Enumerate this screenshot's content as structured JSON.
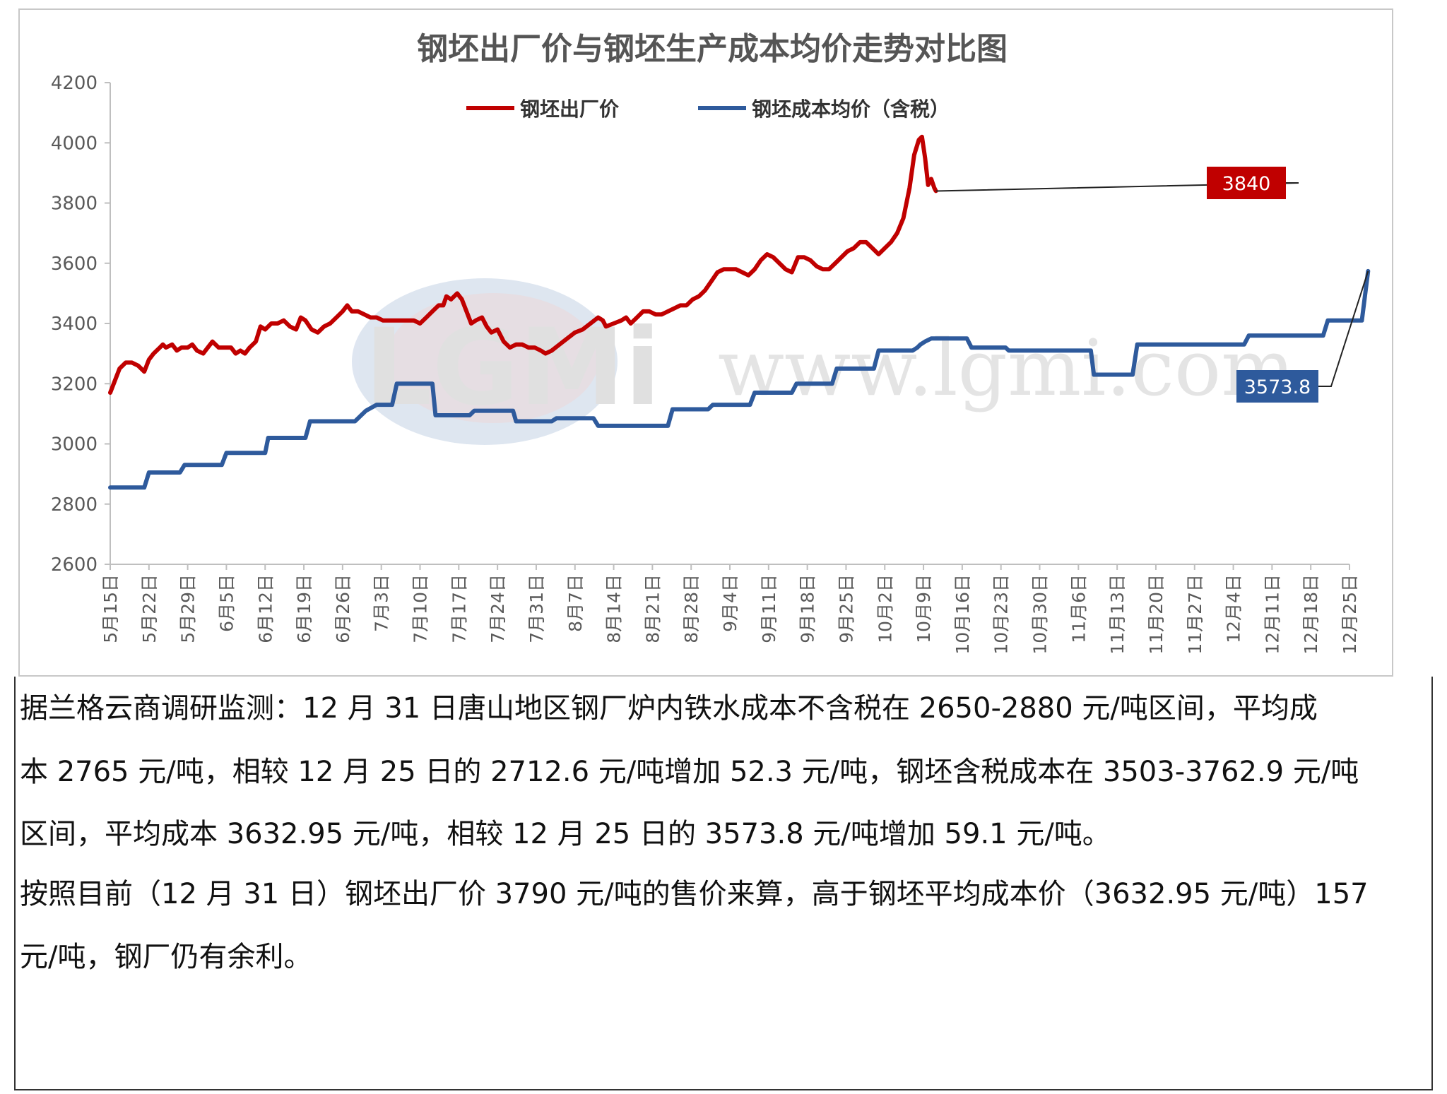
{
  "chart_data": {
    "type": "line",
    "title": "钢坯出厂价与钢坯生产成本均价走势对比图",
    "watermark": "LGMi www.lgmi.com",
    "ylim": [
      2600,
      4200
    ],
    "yticks": [
      "4200",
      "4000",
      "3800",
      "3600",
      "3400",
      "3200",
      "3000",
      "2800",
      "2600"
    ],
    "x_tick_labels": [
      "5月15日",
      "5月22日",
      "5月29日",
      "6月5日",
      "6月12日",
      "6月19日",
      "6月26日",
      "7月3日",
      "7月10日",
      "7月17日",
      "7月24日",
      "7月31日",
      "8月7日",
      "8月14日",
      "8月21日",
      "8月28日",
      "9月4日",
      "9月11日",
      "9月18日",
      "9月25日",
      "10月2日",
      "10月9日",
      "10月16日",
      "10月23日",
      "10月30日",
      "11月6日",
      "11月13日",
      "11月20日",
      "11月27日",
      "12月4日",
      "12月11日",
      "12月18日",
      "12月25日"
    ],
    "legend_position": "top",
    "grid": false,
    "series": [
      {
        "name": "钢坯出厂价",
        "color": "#c00000",
        "points": [
          [
            0,
            3170
          ],
          [
            0.3,
            3210
          ],
          [
            0.6,
            3250
          ],
          [
            1,
            3270
          ],
          [
            1.4,
            3270
          ],
          [
            1.8,
            3260
          ],
          [
            2.2,
            3240
          ],
          [
            2.5,
            3280
          ],
          [
            2.8,
            3300
          ],
          [
            3.2,
            3320
          ],
          [
            3.4,
            3330
          ],
          [
            3.6,
            3320
          ],
          [
            4,
            3330
          ],
          [
            4.3,
            3310
          ],
          [
            4.6,
            3320
          ],
          [
            5,
            3320
          ],
          [
            5.3,
            3330
          ],
          [
            5.6,
            3310
          ],
          [
            6,
            3300
          ],
          [
            6.3,
            3320
          ],
          [
            6.6,
            3340
          ],
          [
            7,
            3320
          ],
          [
            7.4,
            3320
          ],
          [
            7.8,
            3320
          ],
          [
            8.1,
            3300
          ],
          [
            8.4,
            3310
          ],
          [
            8.7,
            3300
          ],
          [
            9,
            3320
          ],
          [
            9.4,
            3340
          ],
          [
            9.7,
            3390
          ],
          [
            10,
            3380
          ],
          [
            10.4,
            3400
          ],
          [
            10.8,
            3400
          ],
          [
            11.2,
            3410
          ],
          [
            11.6,
            3390
          ],
          [
            12,
            3380
          ],
          [
            12.3,
            3420
          ],
          [
            12.6,
            3410
          ],
          [
            13,
            3380
          ],
          [
            13.4,
            3370
          ],
          [
            13.8,
            3390
          ],
          [
            14.2,
            3400
          ],
          [
            14.6,
            3420
          ],
          [
            15,
            3440
          ],
          [
            15.3,
            3460
          ],
          [
            15.6,
            3440
          ],
          [
            16,
            3440
          ],
          [
            16.4,
            3430
          ],
          [
            16.8,
            3420
          ],
          [
            17.2,
            3420
          ],
          [
            17.6,
            3410
          ],
          [
            18,
            3410
          ],
          [
            18.4,
            3410
          ],
          [
            18.8,
            3410
          ],
          [
            19.2,
            3410
          ],
          [
            19.6,
            3410
          ],
          [
            20,
            3400
          ],
          [
            20.4,
            3420
          ],
          [
            20.8,
            3440
          ],
          [
            21.2,
            3460
          ],
          [
            21.5,
            3460
          ],
          [
            21.7,
            3490
          ],
          [
            22,
            3480
          ],
          [
            22.4,
            3500
          ],
          [
            22.7,
            3480
          ],
          [
            23,
            3440
          ],
          [
            23.3,
            3400
          ],
          [
            23.6,
            3410
          ],
          [
            24,
            3420
          ],
          [
            24.3,
            3390
          ],
          [
            24.6,
            3370
          ],
          [
            25,
            3380
          ],
          [
            25.4,
            3340
          ],
          [
            25.8,
            3320
          ],
          [
            26.2,
            3330
          ],
          [
            26.6,
            3330
          ],
          [
            27,
            3320
          ],
          [
            27.4,
            3320
          ],
          [
            27.8,
            3310
          ],
          [
            28.1,
            3300
          ],
          [
            28.5,
            3310
          ],
          [
            29,
            3330
          ],
          [
            29.5,
            3350
          ],
          [
            30,
            3370
          ],
          [
            30.5,
            3380
          ],
          [
            31,
            3400
          ],
          [
            31.5,
            3420
          ],
          [
            31.8,
            3410
          ],
          [
            32,
            3390
          ],
          [
            32.5,
            3400
          ],
          [
            33,
            3410
          ],
          [
            33.3,
            3420
          ],
          [
            33.6,
            3400
          ],
          [
            34,
            3420
          ],
          [
            34.4,
            3440
          ],
          [
            34.8,
            3440
          ],
          [
            35.2,
            3430
          ],
          [
            35.6,
            3430
          ],
          [
            36,
            3440
          ],
          [
            36.4,
            3450
          ],
          [
            36.8,
            3460
          ],
          [
            37.2,
            3460
          ],
          [
            37.6,
            3480
          ],
          [
            38,
            3490
          ],
          [
            38.4,
            3510
          ],
          [
            38.8,
            3540
          ],
          [
            39.2,
            3570
          ],
          [
            39.6,
            3580
          ],
          [
            40,
            3580
          ],
          [
            40.4,
            3580
          ],
          [
            40.8,
            3570
          ],
          [
            41.2,
            3560
          ],
          [
            41.6,
            3580
          ],
          [
            42,
            3610
          ],
          [
            42.4,
            3630
          ],
          [
            42.8,
            3620
          ],
          [
            43.2,
            3600
          ],
          [
            43.6,
            3580
          ],
          [
            44,
            3570
          ],
          [
            44.4,
            3620
          ],
          [
            44.8,
            3620
          ],
          [
            45.2,
            3610
          ],
          [
            45.6,
            3590
          ],
          [
            46,
            3580
          ],
          [
            46.4,
            3580
          ],
          [
            46.8,
            3600
          ],
          [
            47.2,
            3620
          ],
          [
            47.6,
            3640
          ],
          [
            48,
            3650
          ],
          [
            48.4,
            3670
          ],
          [
            48.8,
            3670
          ],
          [
            49.2,
            3650
          ],
          [
            49.6,
            3630
          ],
          [
            50,
            3650
          ],
          [
            50.4,
            3670
          ],
          [
            50.8,
            3700
          ],
          [
            51.2,
            3750
          ],
          [
            51.6,
            3850
          ],
          [
            51.9,
            3960
          ],
          [
            52.2,
            4010
          ],
          [
            52.4,
            4020
          ],
          [
            52.6,
            3950
          ],
          [
            52.8,
            3860
          ],
          [
            53.0,
            3880
          ],
          [
            53.2,
            3850
          ],
          [
            53.3,
            3840
          ]
        ]
      },
      {
        "name": "钢坯成本均价（含税）",
        "color": "#2e5a9c",
        "points": [
          [
            0,
            2855
          ],
          [
            2.2,
            2855
          ],
          [
            2.5,
            2905
          ],
          [
            4.5,
            2905
          ],
          [
            4.8,
            2930
          ],
          [
            7.2,
            2930
          ],
          [
            7.5,
            2970
          ],
          [
            10,
            2970
          ],
          [
            10.2,
            3020
          ],
          [
            12.6,
            3020
          ],
          [
            12.9,
            3075
          ],
          [
            15.8,
            3075
          ],
          [
            16.5,
            3110
          ],
          [
            17.2,
            3130
          ],
          [
            18.2,
            3130
          ],
          [
            18.5,
            3200
          ],
          [
            20.8,
            3200
          ],
          [
            21,
            3095
          ],
          [
            23.2,
            3095
          ],
          [
            23.5,
            3110
          ],
          [
            26,
            3110
          ],
          [
            26.2,
            3075
          ],
          [
            28.5,
            3075
          ],
          [
            28.8,
            3085
          ],
          [
            31.2,
            3085
          ],
          [
            31.5,
            3060
          ],
          [
            36,
            3060
          ],
          [
            36.3,
            3115
          ],
          [
            38.6,
            3115
          ],
          [
            38.9,
            3130
          ],
          [
            41.3,
            3130
          ],
          [
            41.6,
            3170
          ],
          [
            44,
            3170
          ],
          [
            44.3,
            3200
          ],
          [
            46.6,
            3200
          ],
          [
            46.9,
            3250
          ],
          [
            49.3,
            3250
          ],
          [
            49.6,
            3310
          ],
          [
            51.8,
            3310
          ],
          [
            52.1,
            3320
          ],
          [
            52.3,
            3330
          ],
          [
            52.6,
            3340
          ],
          [
            53,
            3350
          ],
          [
            55.3,
            3350
          ],
          [
            55.6,
            3320
          ],
          [
            57.8,
            3320
          ],
          [
            58,
            3310
          ],
          [
            63.3,
            3310
          ],
          [
            63.5,
            3230
          ],
          [
            66,
            3230
          ],
          [
            66.3,
            3330
          ],
          [
            73.2,
            3330
          ],
          [
            73.5,
            3360
          ],
          [
            78.3,
            3360
          ],
          [
            78.6,
            3410
          ],
          [
            80.8,
            3410
          ],
          [
            81.2,
            3573.8
          ]
        ]
      }
    ],
    "annotations": [
      {
        "label": "3840",
        "color": "#c00000"
      },
      {
        "label": "3573.8",
        "color": "#2e5a9c"
      }
    ]
  },
  "text": {
    "p1": "据兰格云商调研监测：12 月 31 日唐山地区钢厂炉内铁水成本不含税在 2650-2880 元/吨区间，平均成",
    "p2": "本 2765 元/吨，相较 12 月 25 日的 2712.6 元/吨增加 52.3 元/吨，钢坯含税成本在 3503-3762.9 元/吨",
    "p3": "区间，平均成本 3632.95 元/吨，相较 12 月 25 日的 3573.8 元/吨增加 59.1 元/吨。",
    "p4": "按照目前（12 月 31 日）钢坯出厂价 3790 元/吨的售价来算，高于钢坯平均成本价（3632.95 元/吨）157",
    "p5": "元/吨，钢厂仍有余利。"
  }
}
